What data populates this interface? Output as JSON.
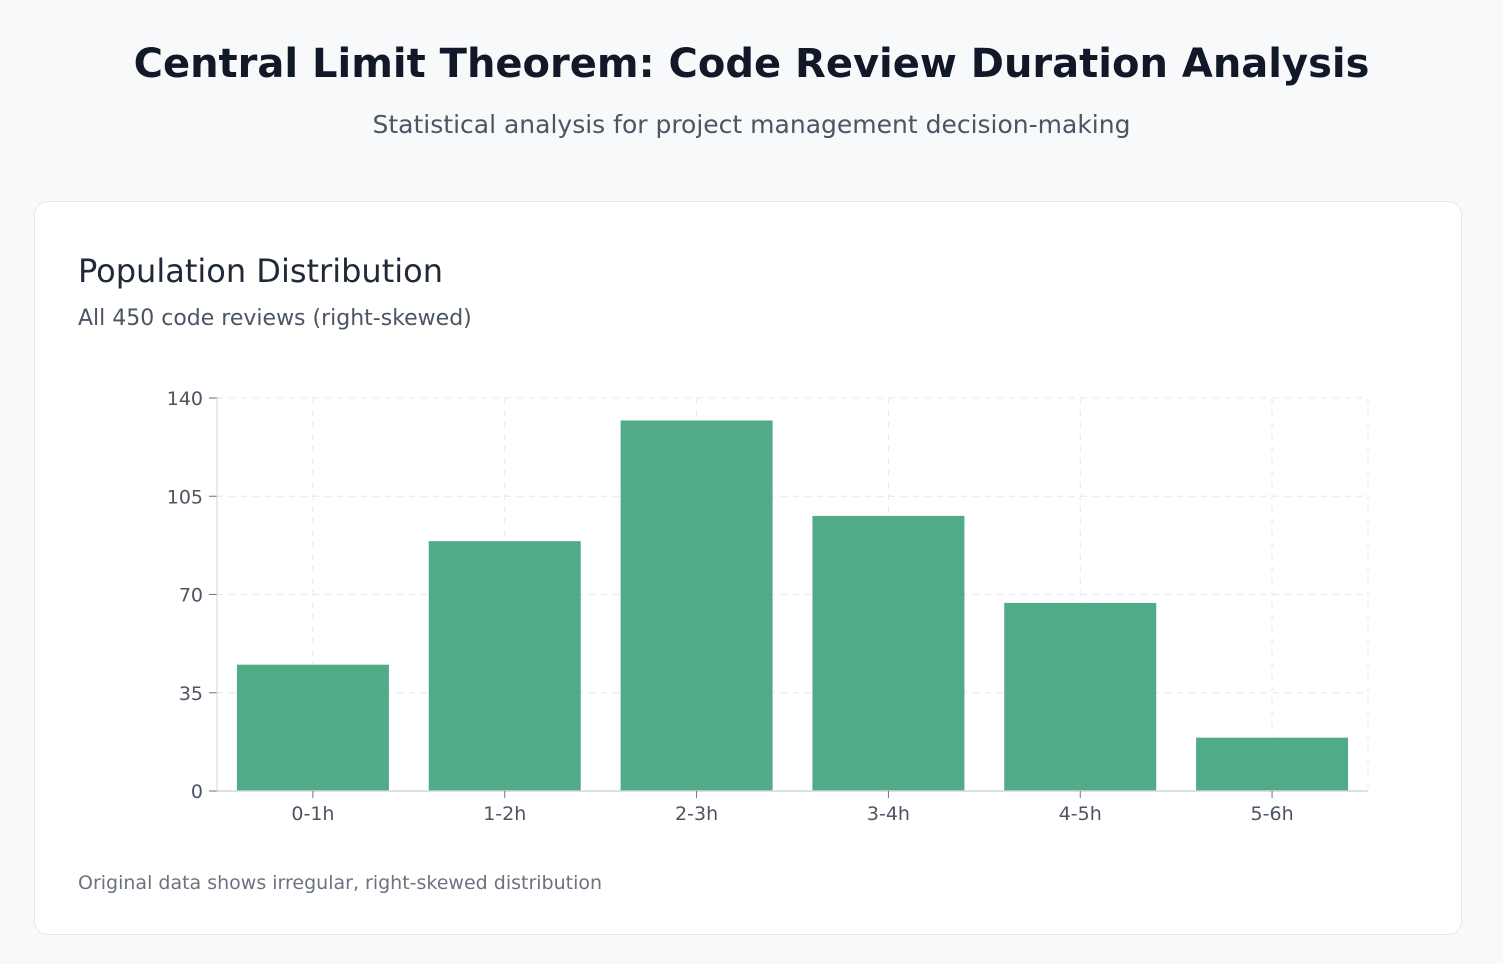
{
  "header": {
    "title": "Central Limit Theorem: Code Review Duration Analysis",
    "subtitle": "Statistical analysis for project management decision-making"
  },
  "card": {
    "title": "Population Distribution",
    "subtitle": "All 450 code reviews (right-skewed)",
    "footnote": "Original data shows irregular, right-skewed distribution"
  },
  "colors": {
    "bar": "#52ab87",
    "grid": "#e5e7eb",
    "axis": "#d1d5db",
    "tick_text": "#4b5563"
  },
  "chart_data": {
    "type": "bar",
    "categories": [
      "0-1h",
      "1-2h",
      "2-3h",
      "3-4h",
      "4-5h",
      "5-6h"
    ],
    "values": [
      45,
      89,
      132,
      98,
      67,
      19
    ],
    "ylim": [
      0,
      140
    ],
    "yticks": [
      0,
      35,
      70,
      105,
      140
    ],
    "grid": true,
    "legend": "none"
  }
}
